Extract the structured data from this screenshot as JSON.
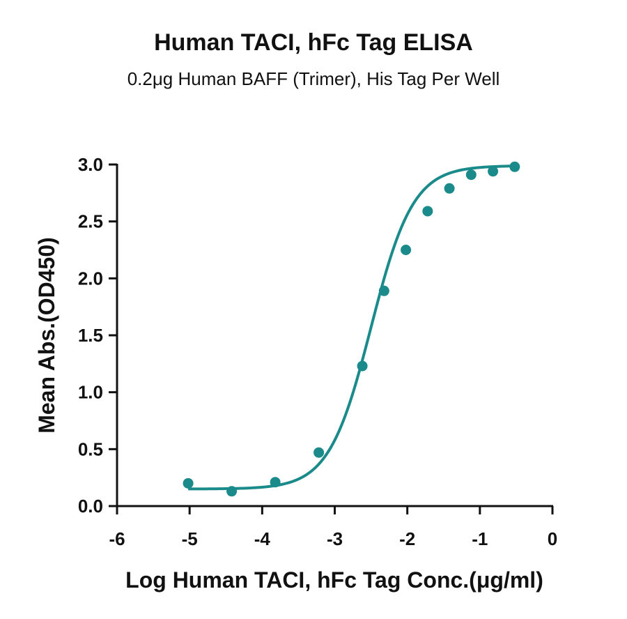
{
  "chart_data": {
    "type": "scatter",
    "title": "Human TACI, hFc Tag ELISA",
    "subtitle": "0.2μg Human BAFF (Trimer), His Tag Per Well",
    "xlabel": "Log Human TACI, hFc Tag Conc.(μg/ml)",
    "ylabel": "Mean Abs.(OD450)",
    "xlim": [
      -6,
      0
    ],
    "ylim": [
      0,
      3.0
    ],
    "x_ticks": [
      "-6",
      "-5",
      "-4",
      "-3",
      "-2",
      "-1",
      "0"
    ],
    "y_ticks": [
      "0.0",
      "0.5",
      "1.0",
      "1.5",
      "2.0",
      "2.5",
      "3.0"
    ],
    "grid": false,
    "color": "#1b8a8a",
    "series": [
      {
        "x": [
          -5.02,
          -4.42,
          -3.82,
          -3.22,
          -2.62,
          -2.32,
          -2.02,
          -1.72,
          -1.42,
          -1.12,
          -0.82,
          -0.52
        ],
        "y": [
          0.2,
          0.13,
          0.21,
          0.47,
          1.23,
          1.89,
          2.25,
          2.59,
          2.79,
          2.91,
          2.94,
          2.98
        ]
      }
    ],
    "fit": {
      "type": "4PL",
      "bottom": 0.15,
      "top": 2.99,
      "logEC50": -2.5,
      "hill": 1.5,
      "x_range": [
        -5.02,
        -0.52
      ]
    }
  }
}
